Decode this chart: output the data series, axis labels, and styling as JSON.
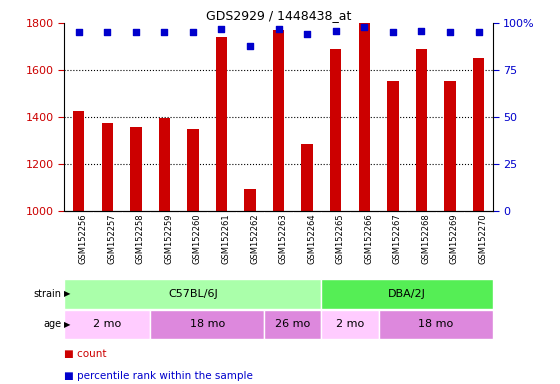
{
  "title": "GDS2929 / 1448438_at",
  "samples": [
    "GSM152256",
    "GSM152257",
    "GSM152258",
    "GSM152259",
    "GSM152260",
    "GSM152261",
    "GSM152262",
    "GSM152263",
    "GSM152264",
    "GSM152265",
    "GSM152266",
    "GSM152267",
    "GSM152268",
    "GSM152269",
    "GSM152270"
  ],
  "counts": [
    1425,
    1375,
    1360,
    1395,
    1350,
    1740,
    1095,
    1770,
    1285,
    1690,
    1800,
    1555,
    1690,
    1555,
    1650
  ],
  "percentile_ranks": [
    95,
    95,
    95,
    95,
    95,
    97,
    88,
    97,
    94,
    96,
    98,
    95,
    96,
    95,
    95
  ],
  "bar_color": "#cc0000",
  "dot_color": "#0000cc",
  "ylim_left": [
    1000,
    1800
  ],
  "ylim_right": [
    0,
    100
  ],
  "yticks_left": [
    1000,
    1200,
    1400,
    1600,
    1800
  ],
  "yticks_right": [
    0,
    25,
    50,
    75,
    100
  ],
  "ytick_right_labels": [
    "0",
    "25",
    "50",
    "75",
    "100%"
  ],
  "grid_lines": [
    1200,
    1400,
    1600
  ],
  "strain_labels": [
    {
      "text": "C57BL/6J",
      "start": 0,
      "end": 8,
      "color": "#aaffaa"
    },
    {
      "text": "DBA/2J",
      "start": 9,
      "end": 14,
      "color": "#55ee55"
    }
  ],
  "age_labels": [
    {
      "text": "2 mo",
      "start": 0,
      "end": 2,
      "color": "#ffccff"
    },
    {
      "text": "18 mo",
      "start": 3,
      "end": 6,
      "color": "#dd88dd"
    },
    {
      "text": "26 mo",
      "start": 7,
      "end": 8,
      "color": "#dd88dd"
    },
    {
      "text": "2 mo",
      "start": 9,
      "end": 10,
      "color": "#ffccff"
    },
    {
      "text": "18 mo",
      "start": 11,
      "end": 14,
      "color": "#dd88dd"
    }
  ],
  "tick_label_bg": "#cccccc",
  "bar_width": 0.4,
  "left_label_color": "#cc0000",
  "right_label_color": "#0000cc"
}
